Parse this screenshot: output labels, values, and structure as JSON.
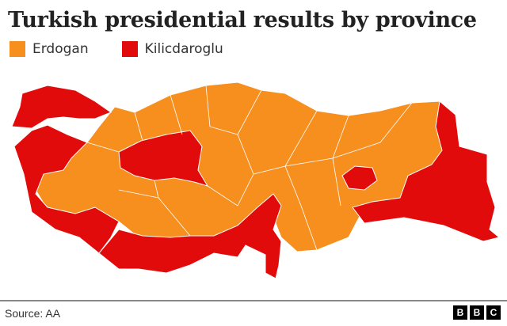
{
  "title": "Turkish presidential results by province",
  "legend": [
    {
      "label": "Erdogan",
      "color": "#f68f1e"
    },
    {
      "label": "Kilicdaroglu",
      "color": "#e20b0b"
    }
  ],
  "source": "Source: AA",
  "logo": "BBC",
  "colors": {
    "border": "#ffffff",
    "text": "#222222"
  }
}
